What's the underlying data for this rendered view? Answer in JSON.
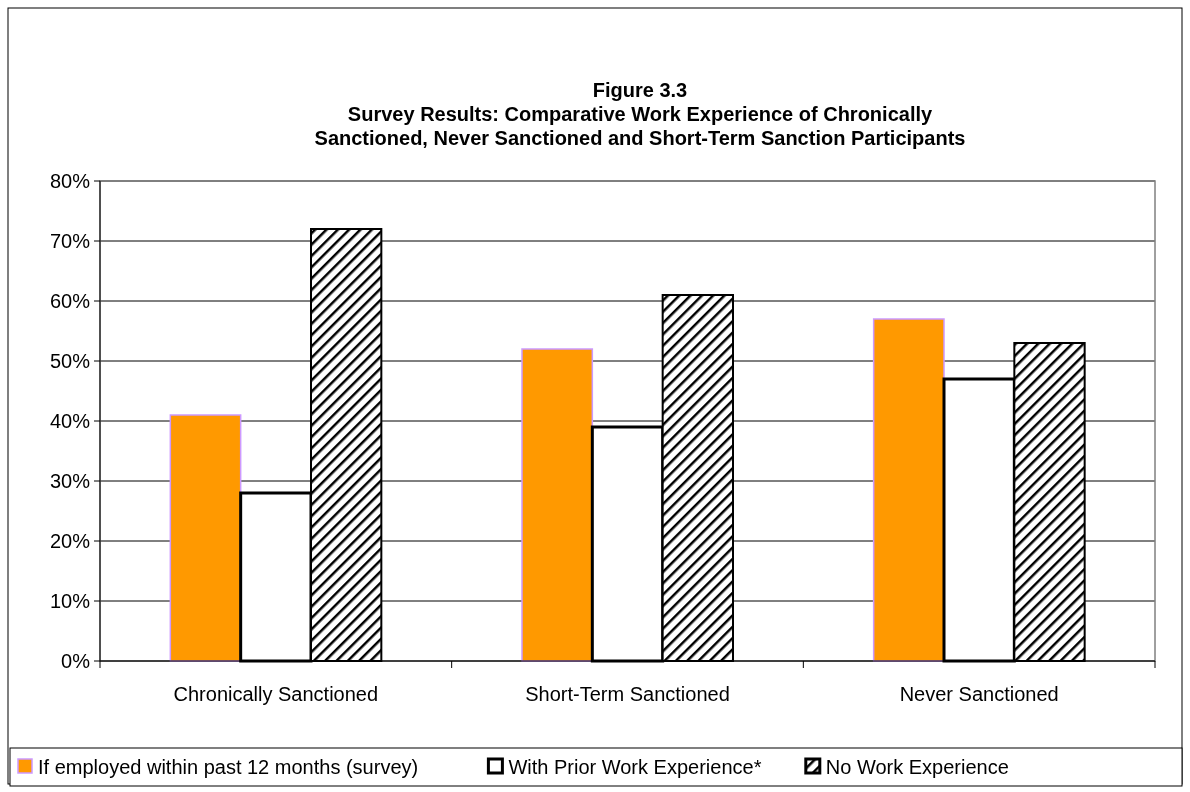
{
  "chart_data": {
    "type": "bar",
    "title": "Figure 3.3\nSurvey Results:  Comparative Work Experience of Chronically\nSanctioned, Never Sanctioned and Short-Term Sanction Participants",
    "categories": [
      "Chronically Sanctioned",
      "Short-Term Sanctioned",
      "Never Sanctioned"
    ],
    "series": [
      {
        "name": "If employed within past 12 months (survey)",
        "color": "#ff9900",
        "values": [
          41,
          52,
          57
        ]
      },
      {
        "name": "With Prior Work Experience*",
        "color": "#ffffff",
        "values": [
          28,
          39,
          47
        ]
      },
      {
        "name": "No Work Experience",
        "color": "#000000",
        "values": [
          72,
          61,
          53
        ]
      }
    ],
    "ylim": [
      0,
      80
    ],
    "yticks": [
      {
        "value": 0,
        "label": "0%"
      },
      {
        "value": 10,
        "label": "10%"
      },
      {
        "value": 20,
        "label": "20%"
      },
      {
        "value": 30,
        "label": "30%"
      },
      {
        "value": 40,
        "label": "40%"
      },
      {
        "value": 50,
        "label": "50%"
      },
      {
        "value": 60,
        "label": "60%"
      },
      {
        "value": 70,
        "label": "70%"
      },
      {
        "value": 80,
        "label": "80%"
      }
    ],
    "grid": "y",
    "legend": "bottom"
  }
}
